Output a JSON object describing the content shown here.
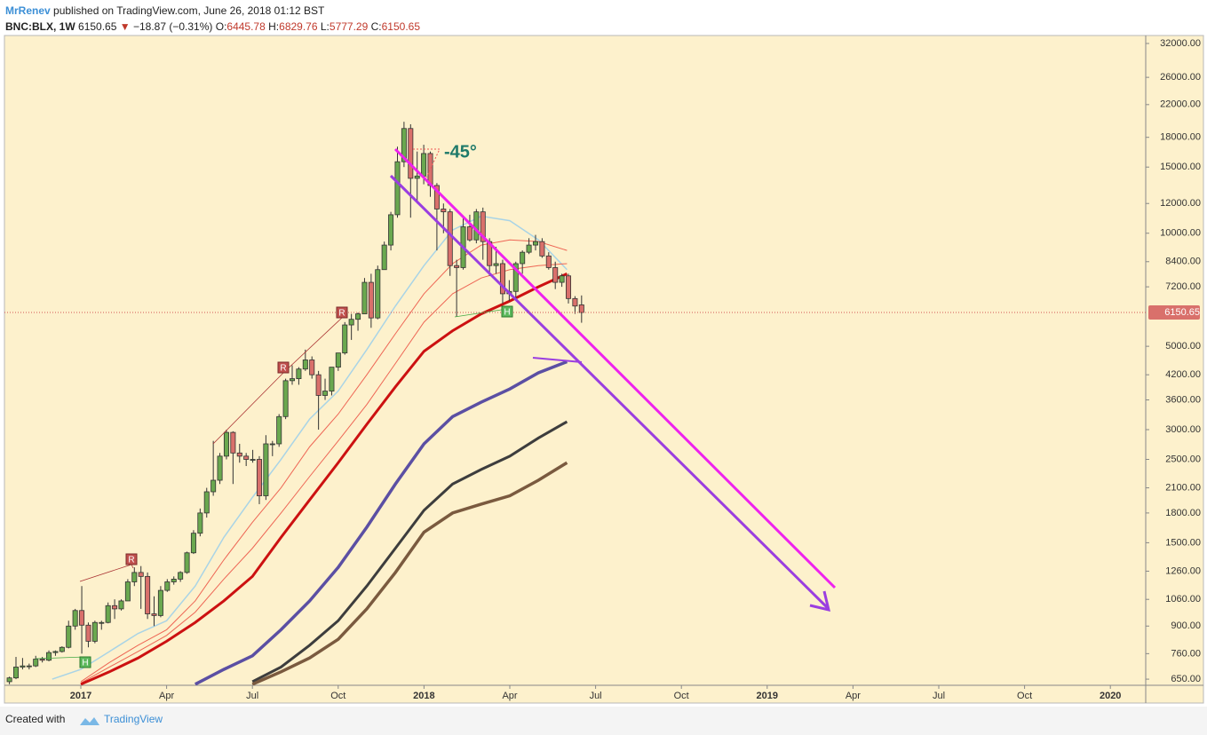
{
  "header": {
    "author": "MrRenev",
    "published": "published on TradingView.com, June 26, 2018 01:12 BST",
    "symbol": "BNC:BLX, 1W",
    "price": "6150.65",
    "arrow": "▼",
    "change": "−18.87 (−0.31%)",
    "o_label": "O:",
    "o": "6445.78",
    "h_label": "H:",
    "h": "6829.76",
    "l_label": "L:",
    "l": "5777.29",
    "c_label": "C:",
    "c": "6150.65"
  },
  "footer": {
    "created": "Created with",
    "brand": "TradingView"
  },
  "chart_data": {
    "type": "candlestick",
    "log_scale": true,
    "up_color": "#6aa84f",
    "down_color": "#d9706b",
    "ylim": [
      626,
      33600
    ],
    "yticks": [
      {
        "value": 32000,
        "label": "32000.00"
      },
      {
        "value": 26000,
        "label": "26000.00"
      },
      {
        "value": 22000,
        "label": "22000.00"
      },
      {
        "value": 18000,
        "label": "18000.00"
      },
      {
        "value": 15000,
        "label": "15000.00"
      },
      {
        "value": 12000,
        "label": "12000.00"
      },
      {
        "value": 10000,
        "label": "10000.00"
      },
      {
        "value": 8400,
        "label": "8400.00"
      },
      {
        "value": 7200,
        "label": "7200.00"
      },
      {
        "value": 5000,
        "label": "5000.00"
      },
      {
        "value": 4200,
        "label": "4200.00"
      },
      {
        "value": 3600,
        "label": "3600.00"
      },
      {
        "value": 3000,
        "label": "3000.00"
      },
      {
        "value": 2500,
        "label": "2500.00"
      },
      {
        "value": 2100,
        "label": "2100.00"
      },
      {
        "value": 1800,
        "label": "1800.00"
      },
      {
        "value": 1500,
        "label": "1500.00"
      },
      {
        "value": 1260,
        "label": "1260.00"
      },
      {
        "value": 1060,
        "label": "1060.00"
      },
      {
        "value": 900,
        "label": "900.00"
      },
      {
        "value": 760,
        "label": "760.00"
      },
      {
        "value": 650,
        "label": "650.00"
      }
    ],
    "last_price": {
      "value": 6150.65,
      "label": "6150.65"
    },
    "xticks": [
      {
        "value": "2017-01",
        "label": "2017"
      },
      {
        "value": "2017-04",
        "label": "Apr"
      },
      {
        "value": "2017-07",
        "label": "Jul"
      },
      {
        "value": "2017-10",
        "label": "Oct"
      },
      {
        "value": "2018-01",
        "label": "2018"
      },
      {
        "value": "2018-04",
        "label": "Apr"
      },
      {
        "value": "2018-07",
        "label": "Jul"
      },
      {
        "value": "2018-10",
        "label": "Oct"
      },
      {
        "value": "2019-01",
        "label": "2019"
      },
      {
        "value": "2019-04",
        "label": "Apr"
      },
      {
        "value": "2019-07",
        "label": "Jul"
      },
      {
        "value": "2019-10",
        "label": "Oct"
      },
      {
        "value": "2020-01",
        "label": "2020"
      }
    ],
    "annotation": "-45°",
    "pivots": [
      "R",
      "R",
      "R",
      "H",
      "H"
    ],
    "ohlc": [
      [
        640,
        660,
        630,
        655
      ],
      [
        655,
        745,
        650,
        700
      ],
      [
        700,
        740,
        690,
        705
      ],
      [
        705,
        715,
        690,
        705
      ],
      [
        705,
        750,
        700,
        735
      ],
      [
        735,
        745,
        720,
        730
      ],
      [
        730,
        775,
        725,
        765
      ],
      [
        765,
        775,
        750,
        770
      ],
      [
        770,
        795,
        765,
        790
      ],
      [
        790,
        930,
        785,
        900
      ],
      [
        900,
        1000,
        880,
        990
      ],
      [
        990,
        1150,
        760,
        905
      ],
      [
        905,
        920,
        790,
        820
      ],
      [
        820,
        930,
        810,
        920
      ],
      [
        920,
        930,
        880,
        920
      ],
      [
        920,
        1040,
        915,
        1020
      ],
      [
        1020,
        1060,
        940,
        1000
      ],
      [
        1000,
        1060,
        990,
        1050
      ],
      [
        1050,
        1200,
        1050,
        1180
      ],
      [
        1180,
        1290,
        1150,
        1250
      ],
      [
        1250,
        1300,
        1000,
        1220
      ],
      [
        1220,
        1250,
        940,
        970
      ],
      [
        970,
        1080,
        900,
        960
      ],
      [
        960,
        1150,
        950,
        1120
      ],
      [
        1120,
        1200,
        1110,
        1180
      ],
      [
        1180,
        1220,
        1160,
        1200
      ],
      [
        1200,
        1260,
        1180,
        1250
      ],
      [
        1250,
        1420,
        1240,
        1410
      ],
      [
        1410,
        1620,
        1400,
        1590
      ],
      [
        1590,
        1850,
        1560,
        1800
      ],
      [
        1800,
        2100,
        1750,
        2050
      ],
      [
        2050,
        2800,
        2000,
        2200
      ],
      [
        2200,
        2600,
        2150,
        2550
      ],
      [
        2550,
        3000,
        2500,
        2950
      ],
      [
        2950,
        2970,
        2150,
        2600
      ],
      [
        2600,
        2750,
        2450,
        2550
      ],
      [
        2550,
        2600,
        2400,
        2500
      ],
      [
        2500,
        2650,
        2450,
        2500
      ],
      [
        2500,
        2550,
        1900,
        2000
      ],
      [
        2000,
        2900,
        1950,
        2750
      ],
      [
        2750,
        2800,
        2550,
        2750
      ],
      [
        2750,
        3300,
        2700,
        3250
      ],
      [
        3250,
        4100,
        3200,
        4050
      ],
      [
        4050,
        4450,
        3950,
        4100
      ],
      [
        4100,
        4400,
        3950,
        4350
      ],
      [
        4350,
        4900,
        4300,
        4600
      ],
      [
        4600,
        4700,
        4100,
        4200
      ],
      [
        4200,
        4300,
        3000,
        3700
      ],
      [
        3700,
        4100,
        3600,
        3800
      ],
      [
        3800,
        4400,
        3700,
        4400
      ],
      [
        4400,
        4800,
        4300,
        4800
      ],
      [
        4800,
        5800,
        4750,
        5700
      ],
      [
        5700,
        6100,
        5200,
        5900
      ],
      [
        5900,
        6150,
        5500,
        6100
      ],
      [
        6100,
        7600,
        6100,
        7400
      ],
      [
        7400,
        7800,
        5600,
        5950
      ],
      [
        5950,
        8200,
        5900,
        8000
      ],
      [
        8000,
        9500,
        8000,
        9300
      ],
      [
        9300,
        11400,
        9000,
        11200
      ],
      [
        11200,
        17000,
        11000,
        15500
      ],
      [
        15500,
        19800,
        15000,
        19000
      ],
      [
        19000,
        19500,
        11000,
        14000
      ],
      [
        14000,
        16500,
        12000,
        14200
      ],
      [
        14200,
        17200,
        13500,
        16300
      ],
      [
        16300,
        16500,
        12500,
        13400
      ],
      [
        13400,
        13600,
        9000,
        11600
      ],
      [
        11600,
        12000,
        10000,
        11400
      ],
      [
        11400,
        11600,
        7700,
        8200
      ],
      [
        8200,
        8500,
        6000,
        8100
      ],
      [
        8100,
        11000,
        8000,
        10400
      ],
      [
        10400,
        11200,
        9500,
        9600
      ],
      [
        9600,
        11600,
        9400,
        11400
      ],
      [
        11400,
        11700,
        8500,
        9500
      ],
      [
        9500,
        9700,
        7700,
        8200
      ],
      [
        8200,
        9200,
        7800,
        8300
      ],
      [
        8300,
        8500,
        6500,
        6900
      ],
      [
        6900,
        7500,
        6600,
        7000
      ],
      [
        7000,
        8400,
        6700,
        8300
      ],
      [
        8300,
        9000,
        7800,
        8900
      ],
      [
        8900,
        9700,
        8800,
        9300
      ],
      [
        9300,
        9900,
        9000,
        9500
      ],
      [
        9500,
        9700,
        8600,
        8700
      ],
      [
        8700,
        8900,
        8000,
        8100
      ],
      [
        8100,
        8400,
        7100,
        7400
      ],
      [
        7400,
        7800,
        7200,
        7700
      ],
      [
        7700,
        7800,
        6500,
        6700
      ],
      [
        6700,
        6800,
        6100,
        6400
      ],
      [
        6445.78,
        6829.76,
        5777.29,
        6150.65
      ]
    ],
    "x": [
      "2016-12",
      "2017-01",
      "2017-02",
      "2017-03",
      "2017-04",
      "2017-05",
      "2017-06",
      "2017-07",
      "2017-08",
      "2017-09",
      "2017-10",
      "2017-11",
      "2017-12",
      "2018-01",
      "2018-02",
      "2018-03",
      "2018-04",
      "2018-05",
      "2018-06"
    ],
    "series": [
      {
        "color": "#a9d4e6",
        "width": 1.5,
        "values": [
          650,
          690,
          770,
          860,
          930,
          1150,
          1550,
          1980,
          2500,
          3200,
          3800,
          4900,
          6400,
          8200,
          10200,
          11100,
          10800,
          9600,
          8000
        ]
      },
      {
        "color": "#ee6655",
        "width": 1,
        "values": [
          null,
          640,
          720,
          800,
          880,
          1050,
          1350,
          1700,
          2100,
          2700,
          3300,
          4200,
          5400,
          6900,
          8300,
          9300,
          9600,
          9500,
          9000
        ]
      },
      {
        "color": "#ee6655",
        "width": 1,
        "values": [
          null,
          635,
          700,
          770,
          850,
          980,
          1200,
          1450,
          1800,
          2250,
          2800,
          3500,
          4500,
          5800,
          6900,
          7600,
          8000,
          8200,
          8300
        ]
      },
      {
        "color": "#cc1111",
        "width": 3,
        "values": [
          null,
          630,
          680,
          740,
          820,
          920,
          1050,
          1220,
          1550,
          1950,
          2450,
          3100,
          3900,
          4850,
          5500,
          6100,
          6600,
          7200,
          7800
        ]
      },
      {
        "color": "#5b4fa3",
        "width": 3.5,
        "values": [
          null,
          null,
          null,
          null,
          null,
          630,
          690,
          750,
          880,
          1050,
          1290,
          1650,
          2150,
          2750,
          3250,
          3550,
          3850,
          4250,
          4550
        ]
      },
      {
        "color": "#3d3d3d",
        "width": 3,
        "values": [
          null,
          null,
          null,
          null,
          null,
          null,
          null,
          640,
          700,
          800,
          930,
          1150,
          1450,
          1830,
          2150,
          2350,
          2550,
          2850,
          3150
        ]
      },
      {
        "color": "#7a5a3f",
        "width": 3.5,
        "values": [
          null,
          null,
          null,
          null,
          null,
          null,
          null,
          630,
          680,
          740,
          830,
          1000,
          1250,
          1600,
          1800,
          1900,
          2000,
          2200,
          2450
        ]
      }
    ]
  }
}
